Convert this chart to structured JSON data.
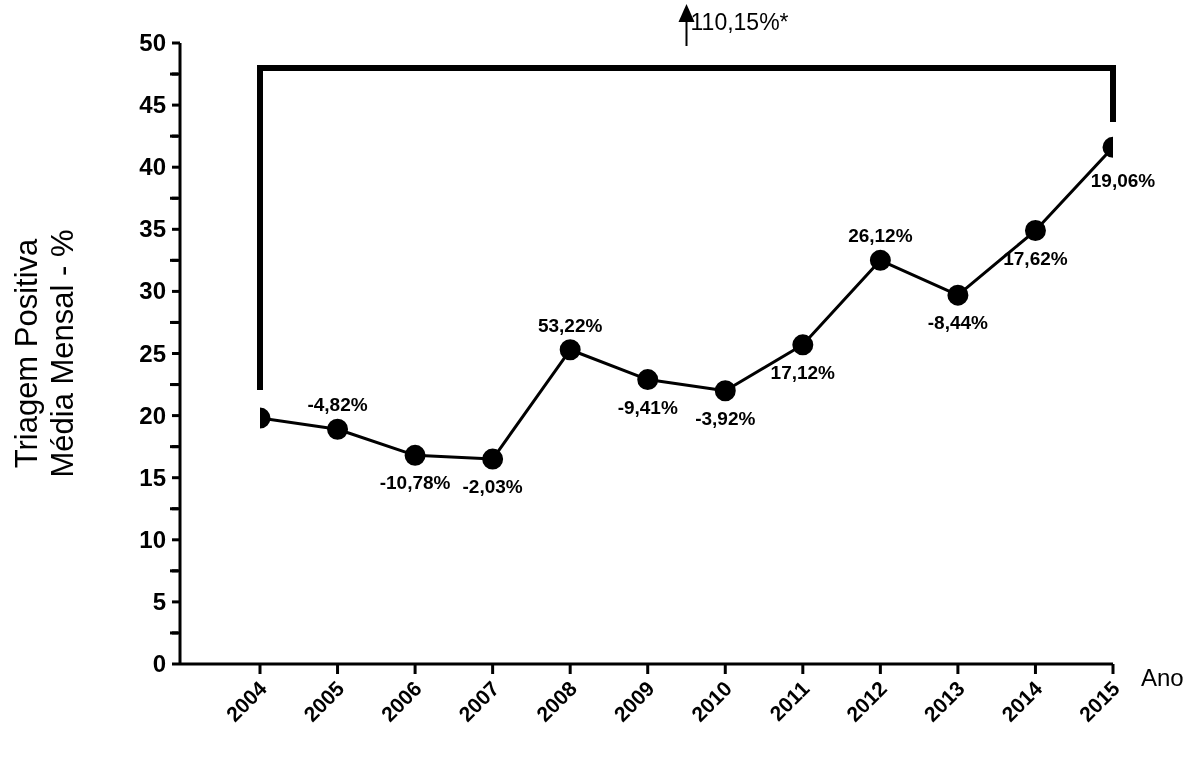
{
  "chart_data": {
    "type": "line",
    "xlabel": "Ano",
    "ylabel": "Triagem Positiva\nMédia Mensal - %",
    "annotations": [
      "110,15%*",
      {
        "text": "-4,82%",
        "x": "2005",
        "y": 18.9
      },
      {
        "text": "-10,78%",
        "x": "2006",
        "y": 16.8
      },
      {
        "text": "-2,03%",
        "x": "2007",
        "y": 16.5
      },
      {
        "text": "53,22%",
        "x": "2008",
        "y": 25.3
      },
      {
        "text": "-9,41%",
        "x": "2009",
        "y": 22.9
      },
      {
        "text": "-3,92%",
        "x": "2010",
        "y": 22
      },
      {
        "text": "17,12%",
        "x": "2011",
        "y": 25.7
      },
      {
        "text": "26,12%",
        "x": "2012",
        "y": 32.5
      },
      {
        "text": "-8,44%",
        "x": "2013",
        "y": 29.7
      },
      {
        "text": "17,62%",
        "x": "2014",
        "y": 34.9
      },
      {
        "text": "19,06%",
        "x": "2015",
        "y": 41.6
      }
    ],
    "categories": [
      "2004",
      "2005",
      "2006",
      "2007",
      "2008",
      "2009",
      "2010",
      "2011",
      "2012",
      "2013",
      "2014",
      "2015"
    ],
    "values": [
      19.8,
      18.9,
      16.8,
      16.5,
      25.3,
      22.9,
      22,
      25.7,
      32.5,
      29.7,
      34.9,
      41.6
    ],
    "color": "#000000",
    "marker": "circle",
    "line_style": "solid",
    "grid": false,
    "legend": false,
    "ylim": [
      0,
      50
    ],
    "yticks": [
      0,
      {
        "value": 2.5,
        "label": null
      },
      5,
      {
        "value": 7.5,
        "label": null
      },
      10,
      {
        "value": 12.5,
        "label": null
      },
      15,
      {
        "value": 17.5,
        "label": null
      },
      20,
      {
        "value": 22.5,
        "label": null
      },
      25,
      {
        "value": 27.5,
        "label": null
      },
      30,
      {
        "value": 32.5,
        "label": null
      },
      35,
      {
        "value": 37.5,
        "label": null
      },
      40,
      {
        "value": 42.5,
        "label": null
      },
      45,
      {
        "value": 47.5,
        "label": null
      },
      50
    ]
  }
}
